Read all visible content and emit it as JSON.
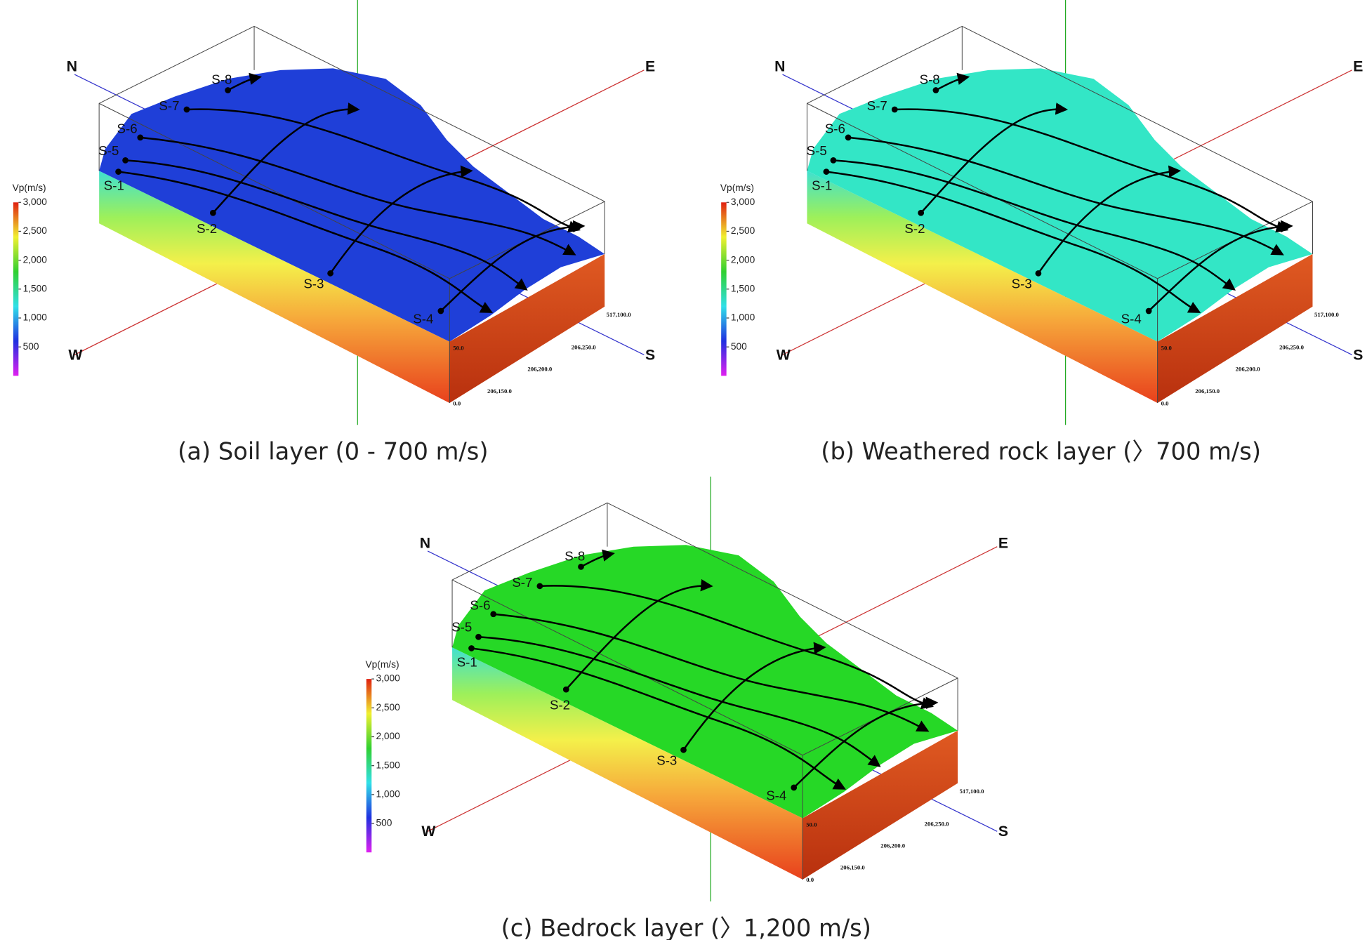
{
  "panels": [
    {
      "caption": "(a) Soil layer (0 - 700 m/s)",
      "color": "#1f3fd8"
    },
    {
      "caption": "(b) Weathered rock layer (〉700 m/s)",
      "color": "#33e6c6"
    },
    {
      "caption": "(c) Bedrock layer (〉1,200 m/s)",
      "color": "#26d826"
    }
  ],
  "directions": {
    "north": "N",
    "east": "E",
    "west": "W",
    "south": "S"
  },
  "legend": {
    "title": "Vp(m/s)",
    "range": [
      0,
      3000
    ],
    "ticks": [
      {
        "value": 3000,
        "label": "3,000"
      },
      {
        "value": 2500,
        "label": "2,500"
      },
      {
        "value": 2000,
        "label": "2,000"
      },
      {
        "value": 1500,
        "label": "1,500"
      },
      {
        "value": 1000,
        "label": "1,000"
      },
      500
    ]
  },
  "survey_lines": [
    "S-1",
    "S-2",
    "S-3",
    "S-4",
    "S-5",
    "S-6",
    "S-7",
    "S-8"
  ],
  "coordinates": [
    "517,100.0",
    "206,250.0",
    "206,200.0",
    "206,150.0",
    "50.0",
    "0.0"
  ]
}
